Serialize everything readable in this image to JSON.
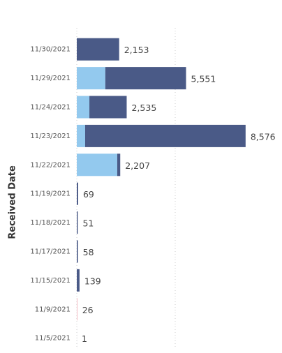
{
  "chart_data": {
    "type": "stacked-bar-horizontal",
    "y_axis_label": "Received Date",
    "categories": [
      "11/30/2021",
      "11/29/2021",
      "11/24/2021",
      "11/23/2021",
      "11/22/2021",
      "11/19/2021",
      "11/18/2021",
      "11/17/2021",
      "11/15/2021",
      "11/9/2021",
      "11/5/2021"
    ],
    "series": [
      {
        "color": "#93c9ee",
        "values": [
          0,
          1450,
          640,
          425,
          2055,
          0,
          0,
          0,
          0,
          0,
          0
        ]
      },
      {
        "color": "#4a5a87",
        "values": [
          2153,
          4101,
          1895,
          8151,
          152,
          69,
          51,
          58,
          139,
          0,
          1
        ]
      },
      {
        "color": "#f1a6b0",
        "values": [
          0,
          0,
          0,
          0,
          0,
          0,
          0,
          0,
          0,
          26,
          0
        ]
      }
    ],
    "totals": [
      2153,
      5551,
      2535,
      8576,
      2207,
      69,
      51,
      58,
      139,
      26,
      1
    ],
    "total_labels": [
      "2,153",
      "5,551",
      "2,535",
      "8,576",
      "2,207",
      "69",
      "51",
      "58",
      "139",
      "26",
      "1"
    ],
    "xlim": [
      0,
      10000
    ],
    "xticks": [
      0,
      5000
    ],
    "grid": true
  }
}
